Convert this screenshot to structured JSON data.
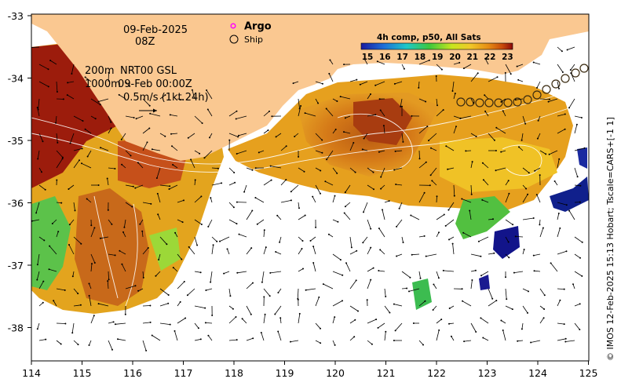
{
  "map": {
    "date": "09-Feb-2025",
    "time": "08Z",
    "depth_note_1": "200m",
    "depth_note_2": "1000m",
    "product_1": "NRT00 GSL",
    "product_2": "09-Feb 00:00Z",
    "vector_scale": "0.5m/s (1kt 24h)",
    "legend": {
      "argo_label": "Argo",
      "ship_label": "Ship",
      "argo_color": "#ff00ff"
    },
    "colorbar": {
      "title": "4h comp, p50, All Sats",
      "ticks": [
        "15",
        "16",
        "17",
        "18",
        "19",
        "20",
        "21",
        "22",
        "23"
      ]
    },
    "side_caption": "© IMOS 12-Feb-2025 15:13 Hobart; Tscale=CARS+[-1 1]",
    "x_ticks": [
      "114",
      "115",
      "116",
      "117",
      "118",
      "119",
      "120",
      "121",
      "122",
      "123",
      "124",
      "125"
    ],
    "y_ticks": [
      "-33",
      "-34",
      "-35",
      "-36",
      "-37",
      "-38"
    ],
    "colors": {
      "land": "#fac891",
      "sst_warm": "#c05a10",
      "sst_hot": "#8b0a0a",
      "sst_mid": "#e8a020",
      "sst_cool": "#2aa84a",
      "sst_cold": "#0a1a8a"
    }
  }
}
